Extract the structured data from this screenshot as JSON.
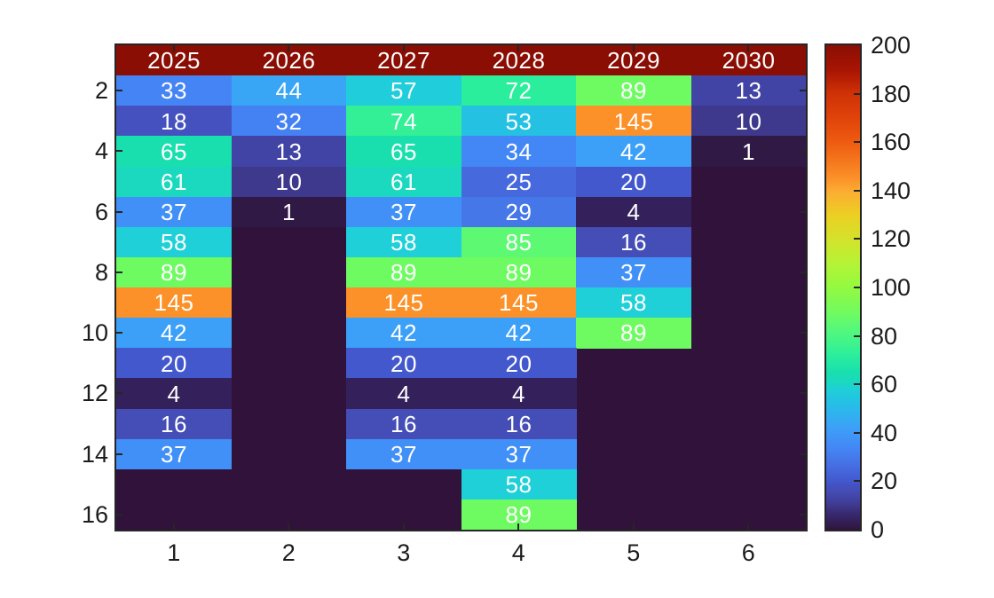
{
  "chart_data": {
    "type": "heatmap",
    "title": "",
    "xlabel": "",
    "ylabel": "",
    "grid": {
      "n_rows": 16,
      "n_cols": 6
    },
    "x_tick_labels": [
      "1",
      "2",
      "3",
      "4",
      "5",
      "6"
    ],
    "y_tick_labels": [
      "2",
      "4",
      "6",
      "8",
      "10",
      "12",
      "14",
      "16"
    ],
    "y_tick_rows": [
      2,
      4,
      6,
      8,
      10,
      12,
      14,
      16
    ],
    "header_row": {
      "row_index": 1,
      "labels": [
        "2025",
        "2026",
        "2027",
        "2028",
        "2029",
        "2030"
      ],
      "bg_color": "#8a0e04",
      "text_color": "#ffffff"
    },
    "values_rows_2_to_16": [
      [
        33,
        44,
        57,
        72,
        89,
        13
      ],
      [
        18,
        32,
        74,
        53,
        145,
        10
      ],
      [
        65,
        13,
        65,
        34,
        42,
        1
      ],
      [
        61,
        10,
        61,
        25,
        20,
        null
      ],
      [
        37,
        1,
        37,
        29,
        4,
        null
      ],
      [
        58,
        null,
        58,
        85,
        16,
        null
      ],
      [
        89,
        null,
        89,
        89,
        37,
        null
      ],
      [
        145,
        null,
        145,
        145,
        58,
        null
      ],
      [
        42,
        null,
        42,
        42,
        89,
        null
      ],
      [
        20,
        null,
        20,
        20,
        null,
        null
      ],
      [
        4,
        null,
        4,
        4,
        null,
        null
      ],
      [
        16,
        null,
        16,
        16,
        null,
        null
      ],
      [
        37,
        null,
        37,
        37,
        null,
        null
      ],
      [
        null,
        null,
        null,
        58,
        null,
        null
      ],
      [
        null,
        null,
        null,
        89,
        null,
        null
      ]
    ],
    "clim": [
      0,
      200
    ],
    "colormap": "turbo",
    "colormap_anchors": [
      [
        0,
        "#30123b"
      ],
      [
        1,
        "#311945"
      ],
      [
        4,
        "#34215c"
      ],
      [
        7,
        "#392b73"
      ],
      [
        10,
        "#3e398c"
      ],
      [
        13,
        "#4144a5"
      ],
      [
        16,
        "#454db6"
      ],
      [
        18,
        "#4451be"
      ],
      [
        20,
        "#4358cd"
      ],
      [
        25,
        "#4669de"
      ],
      [
        29,
        "#4577e8"
      ],
      [
        33,
        "#4484f5"
      ],
      [
        37,
        "#4190f7"
      ],
      [
        42,
        "#3da0f8"
      ],
      [
        48,
        "#2fb3ef"
      ],
      [
        53,
        "#24c1e3"
      ],
      [
        58,
        "#1fd0d8"
      ],
      [
        61,
        "#1bd9bf"
      ],
      [
        65,
        "#19dfae"
      ],
      [
        72,
        "#2bee9d"
      ],
      [
        78,
        "#43f588"
      ],
      [
        85,
        "#5ef973"
      ],
      [
        89,
        "#6efb61"
      ],
      [
        100,
        "#93fa40"
      ],
      [
        110,
        "#b5f336"
      ],
      [
        120,
        "#d4e22b"
      ],
      [
        130,
        "#eccf23"
      ],
      [
        140,
        "#fcab33"
      ],
      [
        145,
        "#fb9128"
      ],
      [
        160,
        "#ee5b11"
      ],
      [
        170,
        "#e0430a"
      ],
      [
        180,
        "#cf3206"
      ],
      [
        190,
        "#a81403"
      ],
      [
        200,
        "#8a0e04"
      ]
    ],
    "colorbar": {
      "tick_values": [
        0,
        20,
        40,
        60,
        80,
        100,
        120,
        140,
        160,
        180,
        200
      ],
      "tick_labels": [
        "0",
        "20",
        "40",
        "60",
        "80",
        "100",
        "120",
        "140",
        "160",
        "180",
        "200"
      ],
      "position": "right"
    },
    "colors": {
      "figure_background": "#ffffff",
      "zero_cell": "#30123b",
      "axis": "#262626",
      "axis_text": "#1c1c1c",
      "cell_text": "#ffffff"
    }
  }
}
